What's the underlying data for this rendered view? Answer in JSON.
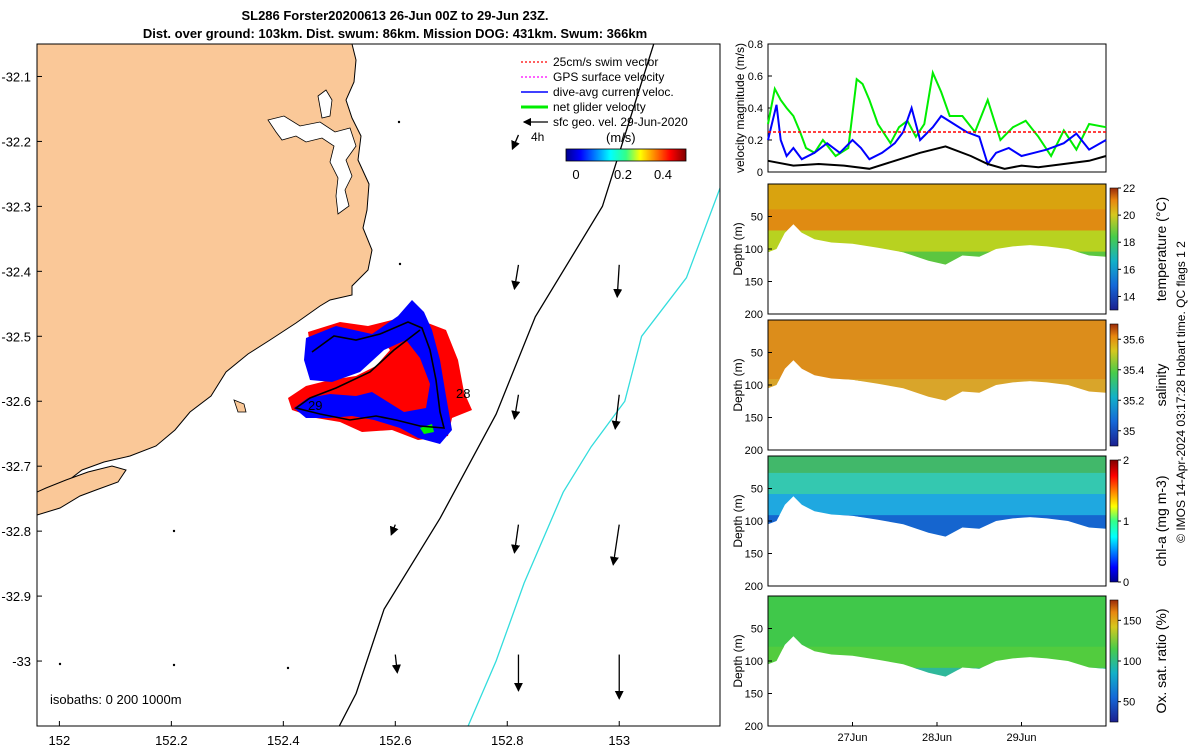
{
  "title_line1": "SL286 Forster20200613 26-Jun 00Z to 29-Jun 23Z.",
  "title_line2": "Dist. over ground: 103km. Dist. swum: 86km. Mission DOG: 431km. Swum: 366km",
  "side_note": "© IMOS 14-Apr-2024 03:17:28 Hobart time. QC flags 1  2",
  "colors": {
    "land": "#FAC898",
    "swim": "#ff0000",
    "gps": "#ff00ff",
    "current": "#0000ff",
    "net": "#00ee00",
    "geo": "#000000",
    "isobath_cyan": "#33dddd"
  },
  "chart_data": [
    {
      "type": "map",
      "xlim": [
        151.96,
        153.18
      ],
      "ylim": [
        -33.1,
        -32.05
      ],
      "x_ticks": [
        "152",
        "152.2",
        "152.4",
        "152.6",
        "152.8",
        "153"
      ],
      "y_ticks": [
        "-32.1",
        "-32.2",
        "-32.3",
        "-32.4",
        "-32.5",
        "-32.6",
        "-32.7",
        "-32.8",
        "-32.9",
        "-33"
      ],
      "x_tick_values": [
        152,
        152.2,
        152.4,
        152.6,
        152.8,
        153
      ],
      "y_tick_values": [
        -32.1,
        -32.2,
        -32.3,
        -32.4,
        -32.5,
        -32.6,
        -32.7,
        -32.8,
        -32.9,
        -33
      ],
      "legend": [
        {
          "label": "25cm/s swim vector",
          "color": "#ff0000",
          "style": "dotted"
        },
        {
          "label": "GPS surface velocity",
          "color": "#ff00ff",
          "style": "dotted"
        },
        {
          "label": "dive-avg current veloc.",
          "color": "#0000ff",
          "style": "solid"
        },
        {
          "label": "net glider velocity",
          "color": "#00ee00",
          "style": "thick"
        },
        {
          "label": "sfc geo. vel. 29-Jun-2020",
          "color": "#000000",
          "style": "arrow"
        }
      ],
      "legend_note": "4h",
      "colorbar": {
        "label": "(m/s)",
        "ticks": [
          "0",
          "0.2",
          "0.4"
        ],
        "range": [
          0,
          0.5
        ]
      },
      "isobath_text": "isobaths: 0   200  1000m",
      "track_day_labels": [
        {
          "text": "28",
          "lon": 152.785,
          "lat": -32.595
        },
        {
          "text": "29",
          "lon": 152.45,
          "lat": -32.615
        }
      ],
      "isobath_200m": [
        [
          153.08,
          -32.0
        ],
        [
          152.97,
          -32.3
        ],
        [
          152.85,
          -32.47
        ],
        [
          152.78,
          -32.62
        ],
        [
          152.68,
          -32.78
        ],
        [
          152.58,
          -32.92
        ],
        [
          152.53,
          -33.05
        ],
        [
          152.5,
          -33.1
        ]
      ],
      "isobath_1000m": [
        [
          153.22,
          -32.18
        ],
        [
          153.12,
          -32.41
        ],
        [
          153.04,
          -32.5
        ],
        [
          153.01,
          -32.6
        ],
        [
          152.95,
          -32.67
        ],
        [
          152.9,
          -32.74
        ],
        [
          152.83,
          -32.88
        ],
        [
          152.78,
          -33.0
        ],
        [
          152.73,
          -33.1
        ]
      ],
      "geo_arrows": [
        {
          "lon": 152.82,
          "lat": -32.19,
          "u": -0.03,
          "v": -0.07
        },
        {
          "lon": 152.82,
          "lat": -32.39,
          "u": -0.02,
          "v": -0.12
        },
        {
          "lon": 153.0,
          "lat": -32.39,
          "u": -0.01,
          "v": -0.16
        },
        {
          "lon": 152.82,
          "lat": -32.59,
          "u": -0.02,
          "v": -0.12
        },
        {
          "lon": 153.0,
          "lat": -32.59,
          "u": -0.02,
          "v": -0.17
        },
        {
          "lon": 152.6,
          "lat": -32.79,
          "u": -0.02,
          "v": -0.05
        },
        {
          "lon": 152.82,
          "lat": -32.79,
          "u": -0.02,
          "v": -0.14
        },
        {
          "lon": 153.0,
          "lat": -32.79,
          "u": -0.03,
          "v": -0.2
        },
        {
          "lon": 152.6,
          "lat": -32.99,
          "u": 0.01,
          "v": -0.09
        },
        {
          "lon": 152.82,
          "lat": -32.99,
          "u": 0.0,
          "v": -0.18
        },
        {
          "lon": 153.0,
          "lat": -32.99,
          "u": 0.0,
          "v": -0.22
        }
      ]
    },
    {
      "type": "line",
      "ylabel": "velocity magnitude (m/s)",
      "ylim": [
        0,
        0.8
      ],
      "y_ticks": [
        "0",
        "0.2",
        "0.4",
        "0.6",
        "0.8"
      ],
      "x_range_days": [
        0,
        4
      ],
      "series": [
        {
          "color": "#00ee00",
          "x": [
            0,
            0.08,
            0.15,
            0.22,
            0.3,
            0.38,
            0.45,
            0.55,
            0.65,
            0.8,
            0.95,
            1.05,
            1.12,
            1.2,
            1.3,
            1.45,
            1.55,
            1.65,
            1.75,
            1.85,
            1.95,
            2.05,
            2.15,
            2.3,
            2.45,
            2.6,
            2.75,
            2.9,
            3.05,
            3.2,
            3.35,
            3.5,
            3.65,
            3.8,
            4.0
          ],
          "y": [
            0.3,
            0.52,
            0.45,
            0.4,
            0.35,
            0.25,
            0.15,
            0.12,
            0.2,
            0.1,
            0.15,
            0.58,
            0.55,
            0.45,
            0.3,
            0.18,
            0.28,
            0.32,
            0.22,
            0.3,
            0.62,
            0.5,
            0.35,
            0.35,
            0.25,
            0.45,
            0.2,
            0.28,
            0.32,
            0.22,
            0.1,
            0.26,
            0.14,
            0.3,
            0.28
          ]
        },
        {
          "color": "#0000ff",
          "x": [
            0,
            0.1,
            0.15,
            0.22,
            0.3,
            0.4,
            0.55,
            0.7,
            0.85,
            1.0,
            1.1,
            1.2,
            1.35,
            1.5,
            1.6,
            1.7,
            1.8,
            1.95,
            2.05,
            2.2,
            2.35,
            2.5,
            2.6,
            2.7,
            2.85,
            3.0,
            3.15,
            3.3,
            3.5,
            3.65,
            3.8,
            4.0
          ],
          "y": [
            0.2,
            0.42,
            0.2,
            0.1,
            0.15,
            0.08,
            0.12,
            0.18,
            0.12,
            0.2,
            0.15,
            0.08,
            0.12,
            0.18,
            0.25,
            0.4,
            0.2,
            0.28,
            0.35,
            0.3,
            0.25,
            0.22,
            0.05,
            0.12,
            0.15,
            0.1,
            0.12,
            0.14,
            0.18,
            0.24,
            0.14,
            0.2
          ]
        },
        {
          "color": "#000000",
          "x": [
            0,
            0.3,
            0.6,
            0.9,
            1.2,
            1.5,
            1.8,
            2.1,
            2.4,
            2.6,
            2.8,
            3.0,
            3.2,
            3.5,
            3.8,
            4.0
          ],
          "y": [
            0.07,
            0.04,
            0.05,
            0.04,
            0.02,
            0.07,
            0.12,
            0.16,
            0.1,
            0.05,
            0.02,
            0.04,
            0.03,
            0.05,
            0.07,
            0.1
          ]
        },
        {
          "color": "#ff0000",
          "dashed": true,
          "x": [
            0,
            4
          ],
          "y": [
            0.25,
            0.25
          ]
        }
      ]
    },
    {
      "type": "heatmap",
      "field": "temperature",
      "ylabel": "Depth (m)",
      "cbar_label": "temperature (°C)",
      "y_ticks": [
        "50",
        "100",
        "150",
        "200"
      ],
      "cbar_ticks": [
        "14",
        "16",
        "18",
        "20",
        "22"
      ],
      "cbar_range": [
        13,
        22
      ],
      "palette": "parula"
    },
    {
      "type": "heatmap",
      "field": "salinity",
      "ylabel": "Depth (m)",
      "cbar_label": "salinity",
      "y_ticks": [
        "50",
        "100",
        "150",
        "200"
      ],
      "cbar_ticks": [
        "35",
        "35.2",
        "35.4",
        "35.6"
      ],
      "cbar_range": [
        34.9,
        35.7
      ],
      "palette": "parula"
    },
    {
      "type": "heatmap",
      "field": "chl-a",
      "ylabel": "Depth (m)",
      "cbar_label": "chl-a (mg m-3)",
      "y_ticks": [
        "50",
        "100",
        "150",
        "200"
      ],
      "cbar_ticks": [
        "0",
        "1",
        "2"
      ],
      "cbar_range": [
        0,
        2
      ],
      "palette": "jet"
    },
    {
      "type": "heatmap",
      "field": "oxygen",
      "ylabel": "Depth (m)",
      "cbar_label": "Ox. sat. ratio (%)",
      "y_ticks": [
        "50",
        "100",
        "150",
        "200"
      ],
      "cbar_ticks": [
        "50",
        "100",
        "150"
      ],
      "cbar_range": [
        25,
        175
      ],
      "palette": "parula"
    }
  ],
  "time_axis": {
    "ticks": [
      "27Jun",
      "28Jun",
      "29Jun"
    ],
    "tick_days": [
      1,
      2,
      3
    ]
  }
}
